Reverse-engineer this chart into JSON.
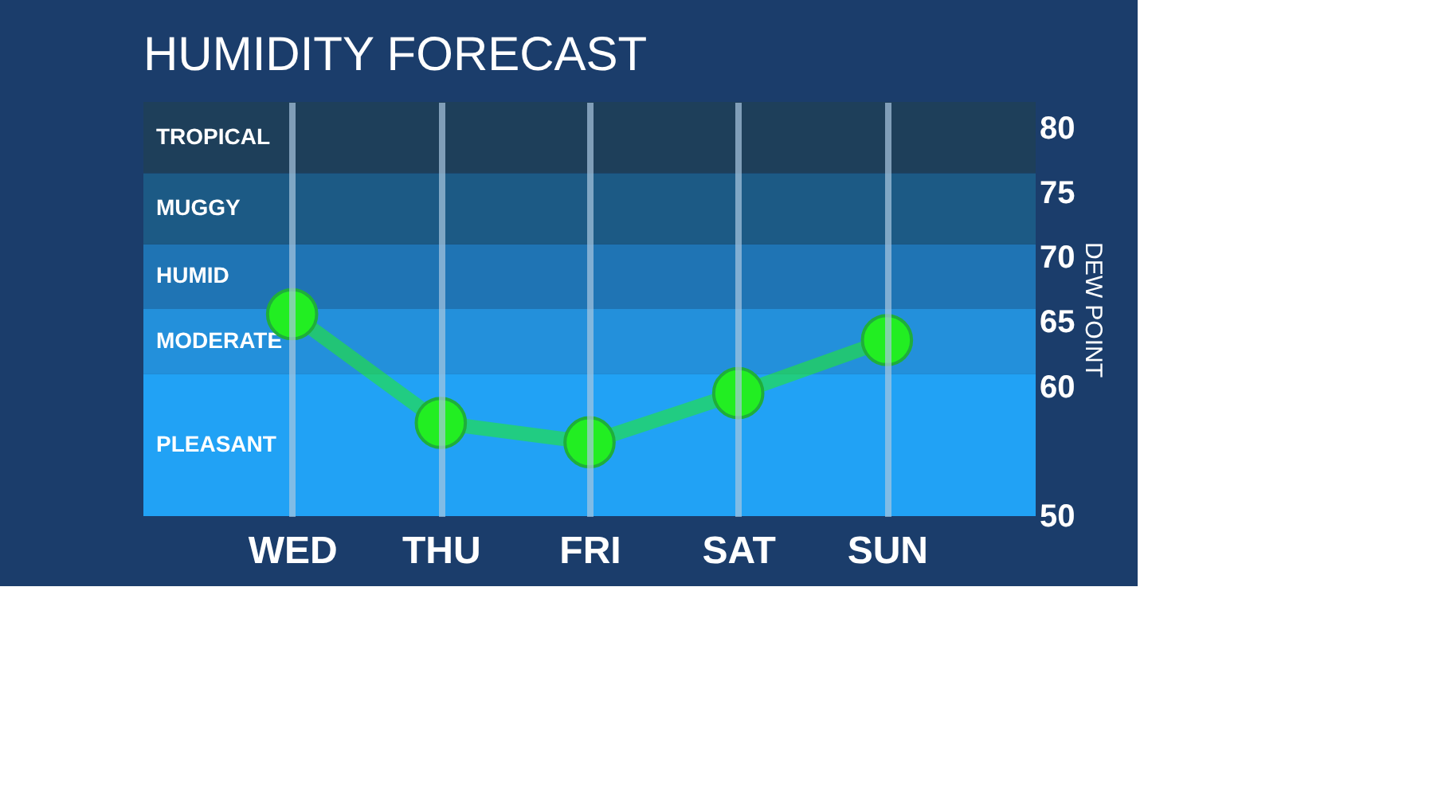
{
  "chart_data": {
    "type": "line",
    "title": "HUMIDITY FORECAST",
    "ylabel": "DEW POINT",
    "categories": [
      "WED",
      "THU",
      "FRI",
      "SAT",
      "SUN"
    ],
    "series": [
      {
        "color": "#22ee22",
        "values": [
          65.6,
          57.2,
          55.7,
          59.5,
          63.6
        ]
      }
    ],
    "ylim": [
      50,
      82
    ],
    "yticks": [
      50,
      60,
      65,
      70,
      75,
      80
    ],
    "grid": "x",
    "marker": "circle",
    "line_style": "solid",
    "bands": [
      {
        "axis": "y",
        "from": 50,
        "to": 61,
        "label": "PLEASANT",
        "color": "#21a2f5"
      },
      {
        "axis": "y",
        "from": 61,
        "to": 66,
        "label": "MODERATE",
        "color": "#2390db"
      },
      {
        "axis": "y",
        "from": 66,
        "to": 71,
        "label": "HUMID",
        "color": "#1f74b4"
      },
      {
        "axis": "y",
        "from": 71,
        "to": 76.5,
        "label": "MUGGY",
        "color": "#1c5a85"
      },
      {
        "axis": "y",
        "from": 76.5,
        "to": 82,
        "label": "TROPICAL",
        "color": "#1e3f5a"
      }
    ]
  }
}
